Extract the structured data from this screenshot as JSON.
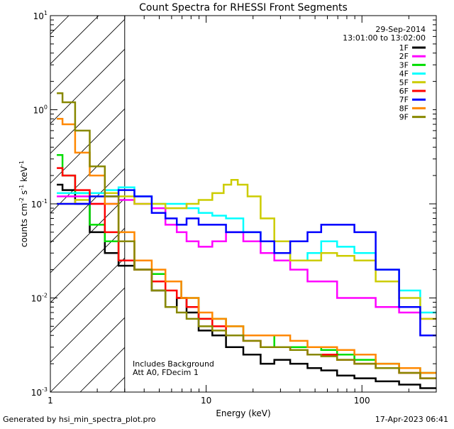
{
  "chart_data": {
    "type": "line",
    "title": "Count Spectra for RHESSI Front Segments",
    "xlabel": "Energy (keV)",
    "ylabel_main": "counts cm",
    "ylabel_sup1": "-2",
    "ylabel_mid": " s",
    "ylabel_sup2": "-1",
    "ylabel_mid2": " keV",
    "ylabel_sup3": "-1",
    "x_scale": "log",
    "y_scale": "log",
    "xlim": [
      1,
      300
    ],
    "ylim": [
      0.001,
      10
    ],
    "x_ticks": [
      {
        "value": 1,
        "label": "1"
      },
      {
        "value": 10,
        "label": "10"
      },
      {
        "value": 100,
        "label": "100"
      }
    ],
    "y_ticks": [
      {
        "value": 0.001,
        "base": "10",
        "exp": "-3"
      },
      {
        "value": 0.01,
        "base": "10",
        "exp": "-2"
      },
      {
        "value": 0.1,
        "base": "10",
        "exp": "-1"
      },
      {
        "value": 1,
        "base": "10",
        "exp": "0"
      },
      {
        "value": 10,
        "base": "10",
        "exp": "1"
      }
    ],
    "shaded_region": [
      1,
      3
    ],
    "legend_placement": "top-right",
    "legend_header": [
      "29-Sep-2014",
      "13:01:00 to 13:02:00"
    ],
    "annotations": [
      "Includes Background",
      "Att A0, FDecim 1"
    ],
    "series": [
      {
        "name": "1F",
        "color": "#000000",
        "points": [
          [
            1.1,
            0.16
          ],
          [
            1.3,
            0.14
          ],
          [
            1.6,
            0.1
          ],
          [
            2,
            0.05
          ],
          [
            2.5,
            0.03
          ],
          [
            3,
            0.022
          ],
          [
            4,
            0.02
          ],
          [
            5,
            0.012
          ],
          [
            6,
            0.008
          ],
          [
            7,
            0.01
          ],
          [
            8,
            0.007
          ],
          [
            10,
            0.0045
          ],
          [
            12,
            0.004
          ],
          [
            15,
            0.003
          ],
          [
            20,
            0.0025
          ],
          [
            25,
            0.002
          ],
          [
            30,
            0.0022
          ],
          [
            40,
            0.002
          ],
          [
            50,
            0.0018
          ],
          [
            60,
            0.0017
          ],
          [
            80,
            0.0015
          ],
          [
            100,
            0.0014
          ],
          [
            150,
            0.0013
          ],
          [
            200,
            0.0012
          ],
          [
            280,
            0.0011
          ]
        ]
      },
      {
        "name": "2F",
        "color": "#ff00ff",
        "points": [
          [
            1.1,
            0.12
          ],
          [
            1.3,
            0.12
          ],
          [
            1.6,
            0.12
          ],
          [
            2,
            0.1
          ],
          [
            2.5,
            0.1
          ],
          [
            3,
            0.11
          ],
          [
            4,
            0.1
          ],
          [
            5,
            0.09
          ],
          [
            6,
            0.06
          ],
          [
            7,
            0.05
          ],
          [
            8,
            0.04
          ],
          [
            10,
            0.035
          ],
          [
            12,
            0.04
          ],
          [
            15,
            0.05
          ],
          [
            20,
            0.04
          ],
          [
            25,
            0.03
          ],
          [
            30,
            0.025
          ],
          [
            40,
            0.02
          ],
          [
            50,
            0.015
          ],
          [
            60,
            0.015
          ],
          [
            80,
            0.01
          ],
          [
            100,
            0.01
          ],
          [
            150,
            0.008
          ],
          [
            200,
            0.007
          ],
          [
            280,
            0.006
          ]
        ]
      },
      {
        "name": "3F",
        "color": "#00dd00",
        "points": [
          [
            1.1,
            0.33
          ],
          [
            1.3,
            0.2
          ],
          [
            1.6,
            0.13
          ],
          [
            2,
            0.06
          ],
          [
            2.5,
            0.04
          ],
          [
            3,
            0.025
          ],
          [
            4,
            0.02
          ],
          [
            5,
            0.018
          ],
          [
            6,
            0.015
          ],
          [
            8,
            0.01
          ],
          [
            10,
            0.006
          ],
          [
            12,
            0.006
          ],
          [
            15,
            0.005
          ],
          [
            20,
            0.004
          ],
          [
            25,
            0.004
          ],
          [
            30,
            0.003
          ],
          [
            40,
            0.003
          ],
          [
            50,
            0.003
          ],
          [
            60,
            0.0028
          ],
          [
            80,
            0.0025
          ],
          [
            100,
            0.0022
          ],
          [
            150,
            0.002
          ],
          [
            200,
            0.0018
          ],
          [
            280,
            0.0016
          ]
        ]
      },
      {
        "name": "4F",
        "color": "#00ffff",
        "points": [
          [
            1.1,
            0.13
          ],
          [
            1.3,
            0.13
          ],
          [
            1.6,
            0.13
          ],
          [
            2,
            0.13
          ],
          [
            2.5,
            0.14
          ],
          [
            3,
            0.15
          ],
          [
            4,
            0.12
          ],
          [
            5,
            0.1
          ],
          [
            6,
            0.1
          ],
          [
            7,
            0.1
          ],
          [
            8,
            0.09
          ],
          [
            10,
            0.08
          ],
          [
            12,
            0.075
          ],
          [
            15,
            0.07
          ],
          [
            20,
            0.05
          ],
          [
            25,
            0.04
          ],
          [
            30,
            0.03
          ],
          [
            40,
            0.025
          ],
          [
            50,
            0.03
          ],
          [
            60,
            0.04
          ],
          [
            80,
            0.035
          ],
          [
            100,
            0.03
          ],
          [
            150,
            0.02
          ],
          [
            200,
            0.012
          ],
          [
            280,
            0.007
          ]
        ]
      },
      {
        "name": "5F",
        "color": "#cccc00",
        "points": [
          [
            1.1,
            0.1
          ],
          [
            1.3,
            0.1
          ],
          [
            1.6,
            0.11
          ],
          [
            2,
            0.12
          ],
          [
            2.5,
            0.13
          ],
          [
            3,
            0.12
          ],
          [
            4,
            0.1
          ],
          [
            5,
            0.1
          ],
          [
            6,
            0.09
          ],
          [
            7,
            0.09
          ],
          [
            8,
            0.1
          ],
          [
            10,
            0.11
          ],
          [
            12,
            0.13
          ],
          [
            14,
            0.16
          ],
          [
            15,
            0.18
          ],
          [
            17,
            0.16
          ],
          [
            20,
            0.12
          ],
          [
            25,
            0.07
          ],
          [
            30,
            0.04
          ],
          [
            40,
            0.025
          ],
          [
            50,
            0.025
          ],
          [
            60,
            0.03
          ],
          [
            80,
            0.028
          ],
          [
            100,
            0.025
          ],
          [
            150,
            0.015
          ],
          [
            200,
            0.01
          ],
          [
            280,
            0.006
          ]
        ]
      },
      {
        "name": "6F",
        "color": "#ff0000",
        "points": [
          [
            1.1,
            0.24
          ],
          [
            1.3,
            0.2
          ],
          [
            1.6,
            0.14
          ],
          [
            2,
            0.1
          ],
          [
            2.5,
            0.05
          ],
          [
            3,
            0.025
          ],
          [
            4,
            0.02
          ],
          [
            5,
            0.015
          ],
          [
            6,
            0.012
          ],
          [
            7,
            0.01
          ],
          [
            8,
            0.008
          ],
          [
            10,
            0.006
          ],
          [
            12,
            0.005
          ],
          [
            15,
            0.004
          ],
          [
            20,
            0.0035
          ],
          [
            25,
            0.003
          ],
          [
            30,
            0.003
          ],
          [
            40,
            0.0028
          ],
          [
            50,
            0.0025
          ],
          [
            60,
            0.0025
          ],
          [
            80,
            0.0022
          ],
          [
            100,
            0.002
          ],
          [
            150,
            0.0018
          ],
          [
            200,
            0.0016
          ],
          [
            280,
            0.0014
          ]
        ]
      },
      {
        "name": "7F",
        "color": "#0000ff",
        "points": [
          [
            1.1,
            0.1
          ],
          [
            1.3,
            0.1
          ],
          [
            1.6,
            0.1
          ],
          [
            2,
            0.12
          ],
          [
            2.5,
            0.12
          ],
          [
            3,
            0.14
          ],
          [
            4,
            0.12
          ],
          [
            5,
            0.08
          ],
          [
            6,
            0.07
          ],
          [
            7,
            0.06
          ],
          [
            8,
            0.07
          ],
          [
            10,
            0.06
          ],
          [
            12,
            0.06
          ],
          [
            15,
            0.05
          ],
          [
            20,
            0.05
          ],
          [
            25,
            0.04
          ],
          [
            30,
            0.03
          ],
          [
            40,
            0.04
          ],
          [
            50,
            0.05
          ],
          [
            60,
            0.06
          ],
          [
            80,
            0.06
          ],
          [
            100,
            0.05
          ],
          [
            150,
            0.02
          ],
          [
            200,
            0.008
          ],
          [
            280,
            0.004
          ]
        ]
      },
      {
        "name": "8F",
        "color": "#ff8800",
        "points": [
          [
            1.1,
            0.8
          ],
          [
            1.3,
            0.7
          ],
          [
            1.6,
            0.35
          ],
          [
            2,
            0.2
          ],
          [
            2.5,
            0.1
          ],
          [
            3,
            0.05
          ],
          [
            4,
            0.025
          ],
          [
            5,
            0.02
          ],
          [
            6,
            0.015
          ],
          [
            8,
            0.01
          ],
          [
            10,
            0.007
          ],
          [
            12,
            0.006
          ],
          [
            15,
            0.005
          ],
          [
            20,
            0.004
          ],
          [
            25,
            0.004
          ],
          [
            30,
            0.004
          ],
          [
            40,
            0.0035
          ],
          [
            50,
            0.003
          ],
          [
            60,
            0.003
          ],
          [
            80,
            0.0028
          ],
          [
            100,
            0.0025
          ],
          [
            150,
            0.002
          ],
          [
            200,
            0.0018
          ],
          [
            280,
            0.0016
          ]
        ]
      },
      {
        "name": "9F",
        "color": "#888800",
        "points": [
          [
            1.1,
            1.5
          ],
          [
            1.3,
            1.2
          ],
          [
            1.6,
            0.6
          ],
          [
            2,
            0.25
          ],
          [
            2.5,
            0.12
          ],
          [
            3,
            0.04
          ],
          [
            4,
            0.02
          ],
          [
            5,
            0.012
          ],
          [
            6,
            0.008
          ],
          [
            7,
            0.007
          ],
          [
            8,
            0.006
          ],
          [
            10,
            0.005
          ],
          [
            12,
            0.0045
          ],
          [
            15,
            0.004
          ],
          [
            20,
            0.0035
          ],
          [
            25,
            0.003
          ],
          [
            30,
            0.003
          ],
          [
            40,
            0.0028
          ],
          [
            50,
            0.0025
          ],
          [
            60,
            0.0024
          ],
          [
            80,
            0.0022
          ],
          [
            100,
            0.002
          ],
          [
            150,
            0.0018
          ],
          [
            200,
            0.0016
          ],
          [
            280,
            0.0014
          ]
        ]
      }
    ]
  },
  "footer": {
    "generated_by": "Generated by hsi_min_spectra_plot.pro",
    "timestamp": "17-Apr-2023 06:41"
  }
}
